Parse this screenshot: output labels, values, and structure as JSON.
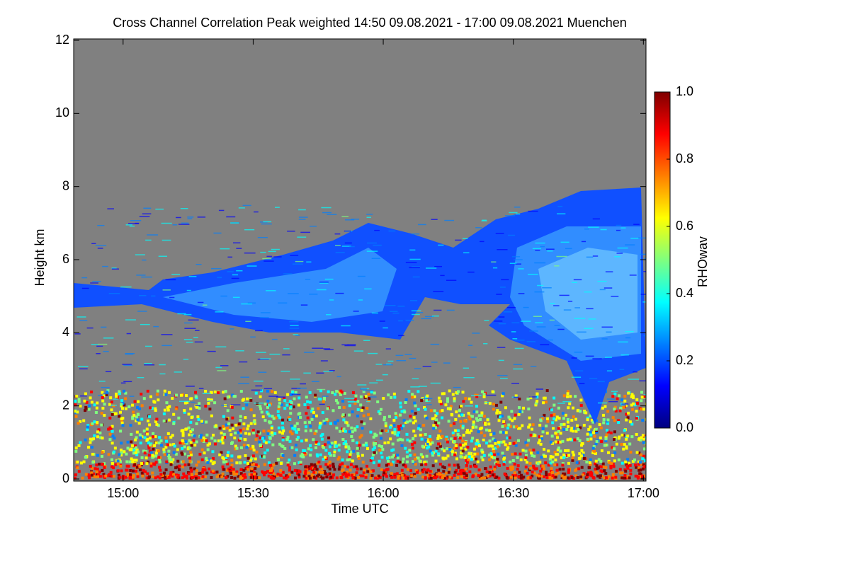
{
  "chart_data": {
    "type": "heatmap",
    "title": "Cross Channel Correlation Peak weighted   14:50 09.08.2021 - 17:00 09.08.2021 Muenchen",
    "x_label": "Time UTC",
    "y_label": "Height km",
    "xlim": [
      14.81,
      17.01
    ],
    "xticks": [
      {
        "value": 15,
        "label": "15:00"
      },
      {
        "value": 15.5,
        "label": "15:30"
      },
      {
        "value": 16,
        "label": "16:00"
      },
      {
        "value": 16.5,
        "label": "16:30"
      },
      {
        "value": 17,
        "label": "17:00"
      }
    ],
    "ylim": [
      0,
      12
    ],
    "yticks": [
      0,
      2,
      4,
      6,
      8,
      10,
      12
    ],
    "colorbar": {
      "label": "RHOwav",
      "lim": [
        0,
        1
      ],
      "ticks": [
        {
          "value": 0,
          "label": "0.0"
        },
        {
          "value": 0.2,
          "label": "0.2"
        },
        {
          "value": 0.4,
          "label": "0.4"
        },
        {
          "value": 0.6,
          "label": "0.6"
        },
        {
          "value": 0.8,
          "label": "0.8"
        },
        {
          "value": 1,
          "label": "1.0"
        }
      ],
      "colormap": [
        "#00007f",
        "#0000ff",
        "#007fff",
        "#00ffff",
        "#7fff7f",
        "#ffff00",
        "#ff7f00",
        "#ff0000",
        "#7f0000"
      ]
    },
    "missing_color": "#808080"
  }
}
